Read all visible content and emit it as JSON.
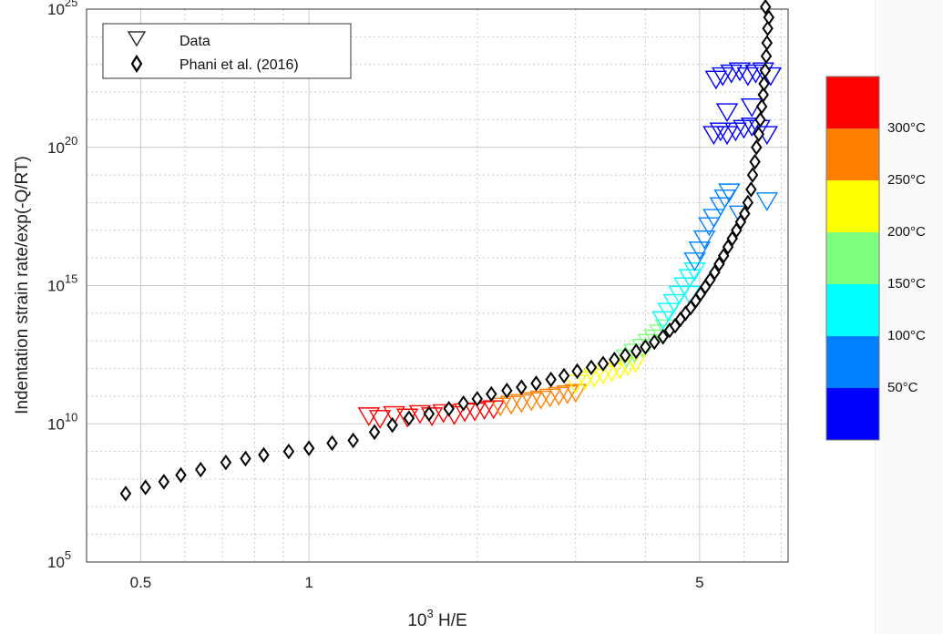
{
  "chart_data": {
    "type": "scatter",
    "title": "",
    "xlabel_base": "10",
    "xlabel_exp": "3",
    "xlabel_rest": " H/E",
    "ylabel": "Indentation strain rate/exp(-Q/RT)",
    "x_scale": "log",
    "y_scale": "log",
    "xlim": [
      0.4,
      7.2
    ],
    "ylim": [
      100000.0,
      1e+25
    ],
    "x_ticks": [
      {
        "value": 0.5,
        "label": "0.5"
      },
      {
        "value": 1,
        "label": "1"
      },
      {
        "value": 5,
        "label": "5"
      }
    ],
    "y_ticks": [
      {
        "value": 100000.0,
        "base": "10",
        "exp": "5"
      },
      {
        "value": 10000000000.0,
        "base": "10",
        "exp": "10"
      },
      {
        "value": 1000000000000000.0,
        "base": "10",
        "exp": "15"
      },
      {
        "value": 1e+20,
        "base": "10",
        "exp": "20"
      },
      {
        "value": 1e+25,
        "base": "10",
        "exp": "25"
      }
    ],
    "grid": true,
    "legend": {
      "position": "top-left",
      "entries": [
        {
          "label": "Data",
          "marker": "triangle-down"
        },
        {
          "label": "Phani et al. (2016)",
          "marker": "diamond"
        }
      ]
    },
    "colorbar": {
      "colors": [
        "#ff0000",
        "#ff8000",
        "#ffff00",
        "#80ff80",
        "#00ffff",
        "#0080ff",
        "#0000ff"
      ],
      "labels": [
        "300°C",
        "250°C",
        "200°C",
        "150°C",
        "100°C",
        "50°C"
      ]
    },
    "series": [
      {
        "name": "Phani et al. (2016)",
        "marker": "diamond",
        "color": "#000000",
        "points": [
          [
            0.47,
            30000000.0
          ],
          [
            0.51,
            50000000.0
          ],
          [
            0.55,
            80000000.0
          ],
          [
            0.59,
            140000000.0
          ],
          [
            0.64,
            220000000.0
          ],
          [
            0.71,
            400000000.0
          ],
          [
            0.77,
            550000000.0
          ],
          [
            0.83,
            750000000.0
          ],
          [
            0.92,
            1000000000.0
          ],
          [
            1.0,
            1300000000.0
          ],
          [
            1.1,
            2000000000.0
          ],
          [
            1.2,
            2500000000.0
          ],
          [
            1.31,
            5000000000.0
          ],
          [
            1.41,
            9000000000.0
          ],
          [
            1.51,
            16000000000.0
          ],
          [
            1.64,
            23000000000.0
          ],
          [
            1.78,
            35000000000.0
          ],
          [
            1.89,
            55000000000.0
          ],
          [
            2.0,
            80000000000.0
          ],
          [
            2.12,
            120000000000.0
          ],
          [
            2.26,
            160000000000.0
          ],
          [
            2.4,
            210000000000.0
          ],
          [
            2.55,
            290000000000.0
          ],
          [
            2.71,
            400000000000.0
          ],
          [
            2.86,
            550000000000.0
          ],
          [
            3.02,
            800000000000.0
          ],
          [
            3.2,
            1100000000000.0
          ],
          [
            3.36,
            1500000000000.0
          ],
          [
            3.52,
            2100000000000.0
          ],
          [
            3.68,
            3000000000000.0
          ],
          [
            3.85,
            4200000000000.0
          ],
          [
            4.0,
            6000000000000.0
          ],
          [
            4.15,
            9000000000000.0
          ],
          [
            4.3,
            14000000000000.0
          ],
          [
            4.42,
            24000000000000.0
          ],
          [
            4.52,
            35000000000000.0
          ],
          [
            4.62,
            60000000000000.0
          ],
          [
            4.72,
            100000000000000.0
          ],
          [
            4.82,
            160000000000000.0
          ],
          [
            4.92,
            280000000000000.0
          ],
          [
            5.02,
            500000000000000.0
          ],
          [
            5.12,
            900000000000000.0
          ],
          [
            5.22,
            1600000000000000.0
          ],
          [
            5.32,
            3000000000000000.0
          ],
          [
            5.42,
            6000000000000000.0
          ],
          [
            5.52,
            1.2e+16
          ],
          [
            5.62,
            2.5e+16
          ],
          [
            5.72,
            5e+16
          ],
          [
            5.82,
            1e+17
          ],
          [
            5.92,
            2e+17
          ],
          [
            6.02,
            4e+17
          ],
          [
            6.1,
            1e+18
          ],
          [
            6.18,
            3e+18
          ],
          [
            6.22,
            1e+19
          ],
          [
            6.28,
            3e+19
          ],
          [
            6.32,
            1e+20
          ],
          [
            6.38,
            3e+20
          ],
          [
            6.42,
            1e+21
          ],
          [
            6.46,
            3e+21
          ],
          [
            6.5,
            8e+21
          ],
          [
            6.52,
            2e+22
          ],
          [
            6.55,
            6e+22
          ],
          [
            6.58,
            2e+23
          ],
          [
            6.6,
            6e+23
          ],
          [
            6.62,
            2e+24
          ],
          [
            6.65,
            5e+24
          ],
          [
            6.56,
            1.2e+25
          ]
        ]
      },
      {
        "name": "Data",
        "marker": "triangle-down",
        "groups": [
          {
            "temperature": "300°C",
            "color": "#ff0000",
            "points": [
              [
                1.28,
                20000000000.0
              ],
              [
                1.34,
                16000000000.0
              ],
              [
                1.42,
                22000000000.0
              ],
              [
                1.5,
                18000000000.0
              ],
              [
                1.58,
                24000000000.0
              ],
              [
                1.66,
                20000000000.0
              ],
              [
                1.74,
                26000000000.0
              ],
              [
                1.82,
                22000000000.0
              ],
              [
                1.9,
                28000000000.0
              ],
              [
                1.98,
                30000000000.0
              ],
              [
                2.06,
                34000000000.0
              ],
              [
                2.14,
                36000000000.0
              ]
            ]
          },
          {
            "temperature": "250°C",
            "color": "#ff8000",
            "points": [
              [
                2.2,
                45000000000.0
              ],
              [
                2.3,
                52000000000.0
              ],
              [
                2.4,
                60000000000.0
              ],
              [
                2.5,
                70000000000.0
              ],
              [
                2.6,
                80000000000.0
              ],
              [
                2.7,
                95000000000.0
              ],
              [
                2.8,
                110000000000.0
              ],
              [
                2.9,
                125000000000.0
              ],
              [
                3.0,
                140000000000.0
              ]
            ]
          },
          {
            "temperature": "200°C",
            "color": "#ffff00",
            "points": [
              [
                3.0,
                300000000000.0
              ],
              [
                3.12,
                400000000000.0
              ],
              [
                3.24,
                500000000000.0
              ],
              [
                3.36,
                650000000000.0
              ],
              [
                3.48,
                800000000000.0
              ],
              [
                3.6,
                1000000000000.0
              ],
              [
                3.72,
                1300000000000.0
              ],
              [
                3.84,
                1700000000000.0
              ]
            ]
          },
          {
            "temperature": "150°C",
            "color": "#80ff80",
            "points": [
              [
                3.7,
                2500000000000.0
              ],
              [
                3.82,
                4000000000000.0
              ],
              [
                3.95,
                6000000000000.0
              ],
              [
                4.05,
                9000000000000.0
              ],
              [
                4.15,
                13000000000000.0
              ],
              [
                4.25,
                20000000000000.0
              ],
              [
                4.35,
                30000000000000.0
              ]
            ]
          },
          {
            "temperature": "100°C",
            "color": "#00ffff",
            "points": [
              [
                4.3,
                60000000000000.0
              ],
              [
                4.4,
                120000000000000.0
              ],
              [
                4.5,
                250000000000000.0
              ],
              [
                4.6,
                500000000000000.0
              ],
              [
                4.7,
                1000000000000000.0
              ],
              [
                4.8,
                2000000000000000.0
              ],
              [
                4.9,
                3500000000000000.0
              ],
              [
                4.8,
                500000000000000.0
              ]
            ]
          },
          {
            "temperature": "50°C",
            "color": "#0080ff",
            "points": [
              [
                4.9,
                8000000000000000.0
              ],
              [
                5.0,
                2e+16
              ],
              [
                5.1,
                5e+16
              ],
              [
                5.2,
                1.5e+17
              ],
              [
                5.3,
                3e+17
              ],
              [
                5.45,
                8e+17
              ],
              [
                5.55,
                1.5e+18
              ],
              [
                5.65,
                2.5e+18
              ],
              [
                5.9,
                4e+17
              ],
              [
                6.6,
                1.2e+18
              ]
            ]
          },
          {
            "temperature": "",
            "color": "#0000ff",
            "points": [
              [
                5.3,
                3e+20
              ],
              [
                5.45,
                4e+20
              ],
              [
                5.6,
                3e+20
              ],
              [
                5.8,
                4e+20
              ],
              [
                6.0,
                5e+20
              ],
              [
                6.2,
                6e+20
              ],
              [
                6.4,
                5e+20
              ],
              [
                6.6,
                3e+20
              ],
              [
                5.35,
                3e+22
              ],
              [
                5.5,
                4e+22
              ],
              [
                5.7,
                5e+22
              ],
              [
                5.9,
                6e+22
              ],
              [
                6.1,
                4e+22
              ],
              [
                6.3,
                5e+22
              ],
              [
                6.5,
                6e+22
              ],
              [
                6.7,
                4e+22
              ],
              [
                5.6,
                2e+21
              ],
              [
                6.2,
                3e+21
              ]
            ]
          }
        ]
      }
    ]
  }
}
